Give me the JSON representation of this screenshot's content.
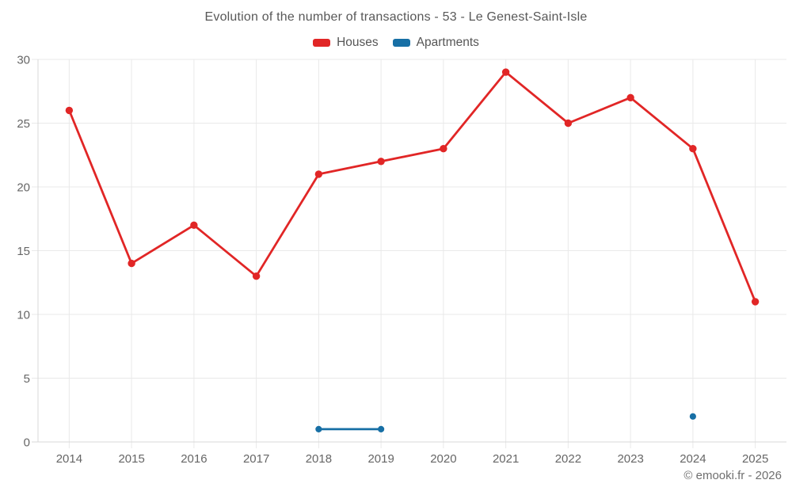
{
  "title": "Evolution of the number of transactions - 53 - Le Genest-Saint-Isle",
  "copyright": "© emooki.fr - 2026",
  "colors": {
    "grid": "#e9e9e9",
    "axis": "#d9d9d9",
    "tick_text": "#666666",
    "title_text": "#585858",
    "background": "#ffffff"
  },
  "chart_data": {
    "type": "line",
    "categories": [
      "2014",
      "2015",
      "2016",
      "2017",
      "2018",
      "2019",
      "2020",
      "2021",
      "2022",
      "2023",
      "2024",
      "2025"
    ],
    "series": [
      {
        "name": "Houses",
        "color": "#e12626",
        "values": [
          26,
          14,
          17,
          13,
          21,
          22,
          23,
          29,
          25,
          27,
          23,
          11
        ]
      },
      {
        "name": "Apartments",
        "color": "#176fa5",
        "values": [
          null,
          null,
          null,
          null,
          1,
          1,
          null,
          null,
          null,
          null,
          2,
          null
        ]
      }
    ],
    "title": "Evolution of the number of transactions - 53 - Le Genest-Saint-Isle",
    "xlabel": "",
    "ylabel": "",
    "ylim": [
      0,
      30
    ],
    "ytick_step": 5,
    "yticks": [
      0,
      5,
      10,
      15,
      20,
      25,
      30
    ],
    "grid": true,
    "legend_position": "top"
  }
}
